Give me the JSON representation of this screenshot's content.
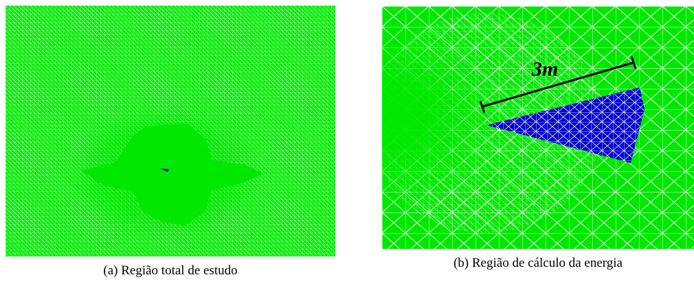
{
  "figure": {
    "panels": [
      {
        "caption": "(a) Região total de estudo"
      },
      {
        "caption": "(b) Região de cálculo da energia",
        "scale_label": "3m"
      }
    ]
  },
  "colors": {
    "mesh_fill": "#00e800",
    "mesh_lines": "#ffffff",
    "energy_region": "#0000cc",
    "scale_bar": "#000000"
  }
}
